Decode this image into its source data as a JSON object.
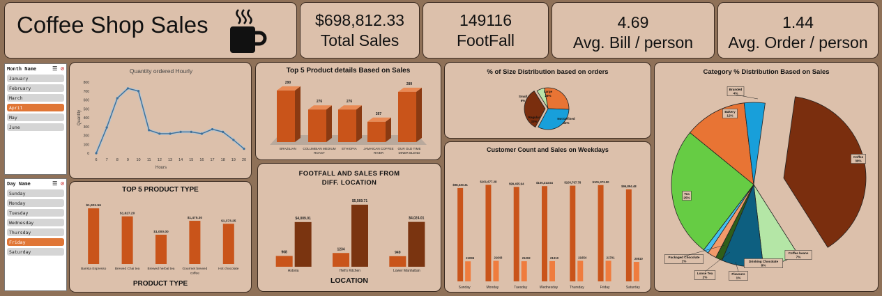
{
  "header": {
    "title": "Coffee Shop Sales",
    "icon": "coffee-cup-icon"
  },
  "kpis": [
    {
      "value": "$698,812.33",
      "label": "Total Sales"
    },
    {
      "value": "149116",
      "label": "FootFall"
    },
    {
      "value": "4.69",
      "label": "Avg. Bill / person"
    },
    {
      "value": "1.44",
      "label": "Avg. Order / person"
    }
  ],
  "slicers": {
    "month": {
      "title": "Month Name",
      "items": [
        "January",
        "February",
        "March",
        "April",
        "May",
        "June"
      ],
      "selected": "April"
    },
    "day": {
      "title": "Day Name",
      "items": [
        "Sunday",
        "Monday",
        "Tuesday",
        "Wednesday",
        "Thursday",
        "Friday",
        "Saturday"
      ],
      "selected": "Friday"
    }
  },
  "chart_data": [
    {
      "id": "hourly",
      "type": "line",
      "title": "Quantity ordered Hourly",
      "xlabel": "Hours",
      "ylabel": "Quantity",
      "x": [
        6,
        7,
        8,
        9,
        10,
        11,
        12,
        13,
        14,
        15,
        16,
        17,
        18,
        19,
        20
      ],
      "values": [
        0,
        290,
        620,
        730,
        700,
        260,
        220,
        220,
        240,
        240,
        220,
        270,
        240,
        150,
        50
      ],
      "ylim": [
        0,
        800
      ],
      "yticks": [
        0,
        100,
        200,
        300,
        400,
        500,
        600,
        700,
        800
      ],
      "grid": false,
      "color": "#3f6e96"
    },
    {
      "id": "top5product",
      "type": "bar",
      "title": "Top 5 Product details Based on Sales",
      "categories": [
        "BRAZILIAN",
        "COLUMBIAN MEDIUM ROAST",
        "ETHIOPIA",
        "JAMAICAN COFFEE RIVER",
        "OUR OLD TIME DINER BLEND"
      ],
      "values": [
        290,
        276,
        276,
        267,
        289
      ],
      "data_labels": [
        "290",
        "276",
        "276",
        "267",
        "289"
      ],
      "ylim": [
        250,
        292
      ],
      "color": "#c9541a"
    },
    {
      "id": "size",
      "type": "pie",
      "title": "% of Size  Distribution based on orders",
      "slices": [
        {
          "name": "Large",
          "pct": "28%",
          "value": 28,
          "color": "#e87434"
        },
        {
          "name": "Not Defined",
          "pct": "32%",
          "value": 32,
          "color": "#189fda"
        },
        {
          "name": "Regular",
          "pct": "33%",
          "value": 33,
          "color": "#7a2e0e"
        },
        {
          "name": "Small",
          "pct": "6%",
          "value": 6,
          "color": "#b9e3a8"
        }
      ]
    },
    {
      "id": "category",
      "type": "pie",
      "title": "Category % Distribution Based on Sales",
      "slices": [
        {
          "name": "Coffee",
          "pct": "38%",
          "value": 38,
          "color": "#7a2e0e"
        },
        {
          "name": "Coffee beans",
          "pct": "7%",
          "value": 7,
          "color": "#b4e6a6"
        },
        {
          "name": "Drinking Chocolate",
          "pct": "8%",
          "value": 8,
          "color": "#0d5f80"
        },
        {
          "name": "Flavours",
          "pct": "1%",
          "value": 1.3,
          "color": "#2f5e1a"
        },
        {
          "name": "Loose Tea",
          "pct": "2%",
          "value": 1.7,
          "color": "#f29a6a"
        },
        {
          "name": "Packaged Chocolate",
          "pct": "1%",
          "value": 1,
          "color": "#45c0f0"
        },
        {
          "name": "Tea",
          "pct": "25%",
          "value": 25,
          "color": "#66cc44"
        },
        {
          "name": "Bakery",
          "pct": "12%",
          "value": 12,
          "color": "#e87434"
        },
        {
          "name": "Branded",
          "pct": "4%",
          "value": 4,
          "color": "#189fda"
        }
      ]
    },
    {
      "id": "producttype",
      "type": "bar",
      "title": "TOP 5 PRODUCT TYPE",
      "xlabel": "PRODUCT TYPE",
      "categories": [
        "Barista Espresso",
        "Brewed Chai tea",
        "Brewed herbal tea",
        "Gourmet brewed coffee",
        "Hot chocolate"
      ],
      "values": [
        1901.56,
        1627.2,
        1000.0,
        1475.3,
        1373.25
      ],
      "data_labels": [
        "$1,901.56",
        "$1,627.20",
        "$1,000.00",
        "$1,475.30",
        "$1,373.25"
      ],
      "ylim": [
        0,
        2000
      ],
      "color": "#c9541a"
    },
    {
      "id": "location",
      "type": "bar",
      "title": "FOOTFALL AND SALES FROM DIFF. LOCATION",
      "xlabel": "LOCATION",
      "categories": [
        "Astoria",
        "Hell's Kitchen",
        "Lower Manhattan"
      ],
      "series": [
        {
          "values": [
            968,
            1234,
            949
          ],
          "data_labels": [
            "968",
            "1234",
            "949"
          ],
          "color": "#c9541a"
        },
        {
          "values": [
            4009.01,
            5569.71,
            4024.01
          ],
          "data_labels": [
            "$4,009.01",
            "$5,569.71",
            "$4,024.01"
          ],
          "color": "#7a3410"
        }
      ],
      "ylim": [
        0,
        6000
      ]
    },
    {
      "id": "weekday",
      "type": "bar",
      "title": "Customer Count and Sales on Weekdays",
      "categories": [
        "Sunday",
        "Monday",
        "Tuesday",
        "Wednesday",
        "Thursday",
        "Friday",
        "Saturday"
      ],
      "series": [
        {
          "values": [
            98330.31,
            101677.28,
            99455.94,
            100313.54,
            100767.78,
            101373.0,
            96894.48
          ],
          "data_labels": [
            "$98,330.31",
            "$101,677.28",
            "$99,455.94",
            "$100,313.54",
            "$100,767.78",
            "$101,373.00",
            "$96,894.48"
          ],
          "color": "#c9541a"
        },
        {
          "values": [
            21096,
            21643,
            21202,
            21310,
            21654,
            21701,
            20510
          ],
          "data_labels": [
            "21096",
            "21643",
            "21202",
            "21310",
            "21654",
            "21701",
            "20510"
          ],
          "color": "#ef7c3e"
        }
      ],
      "ylim": [
        0,
        110000
      ]
    }
  ]
}
